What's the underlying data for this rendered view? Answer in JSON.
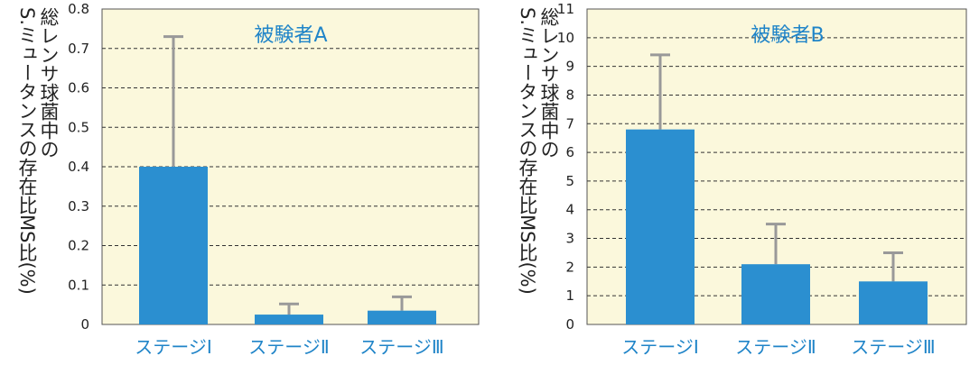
{
  "colors": {
    "plot_bg": "#fbf8dc",
    "bar": "#2b8fd0",
    "error_bar": "#999999",
    "label_blue": "#1f84c8",
    "grid": "#333333"
  },
  "chart_data": [
    {
      "type": "bar",
      "title": "被験者A",
      "ylabel_line1": "総レンサ球菌中の",
      "ylabel_line2": "S.ミュータンスの存在比MS比(%)",
      "categories": [
        "ステージⅠ",
        "ステージⅡ",
        "ステージⅢ"
      ],
      "values": [
        0.4,
        0.025,
        0.035
      ],
      "errors": [
        0.33,
        0.027,
        0.035
      ],
      "ylim": [
        0,
        0.8
      ],
      "yticks": [
        0,
        0.1,
        0.2,
        0.3,
        0.4,
        0.5,
        0.6,
        0.7,
        0.8
      ],
      "ytick_labels": [
        "0",
        "0.1",
        "0.2",
        "0.3",
        "0.4",
        "0.5",
        "0.6",
        "0.7",
        "0.8"
      ],
      "grid_lines": [
        0.1,
        0.2,
        0.3,
        0.4,
        0.5,
        0.6,
        0.7
      ],
      "grid": "dashed"
    },
    {
      "type": "bar",
      "title": "被験者B",
      "ylabel_line1": "総レンサ球菌中の",
      "ylabel_line2": "S.ミュータンスの存在比MS比(%)",
      "categories": [
        "ステージⅠ",
        "ステージⅡ",
        "ステージⅢ"
      ],
      "values": [
        6.8,
        2.1,
        1.5
      ],
      "errors": [
        2.6,
        1.4,
        1.0
      ],
      "ylim": [
        0,
        11
      ],
      "yticks": [
        0,
        1,
        2,
        3,
        4,
        5,
        6,
        7,
        8,
        9,
        10,
        11
      ],
      "ytick_labels": [
        "0",
        "1",
        "2",
        "3",
        "4",
        "5",
        "6",
        "7",
        "8",
        "9",
        "10",
        "11"
      ],
      "grid_lines": [
        1,
        2,
        3,
        4,
        5,
        6,
        7,
        8,
        9,
        10
      ],
      "grid": "dashed"
    }
  ]
}
